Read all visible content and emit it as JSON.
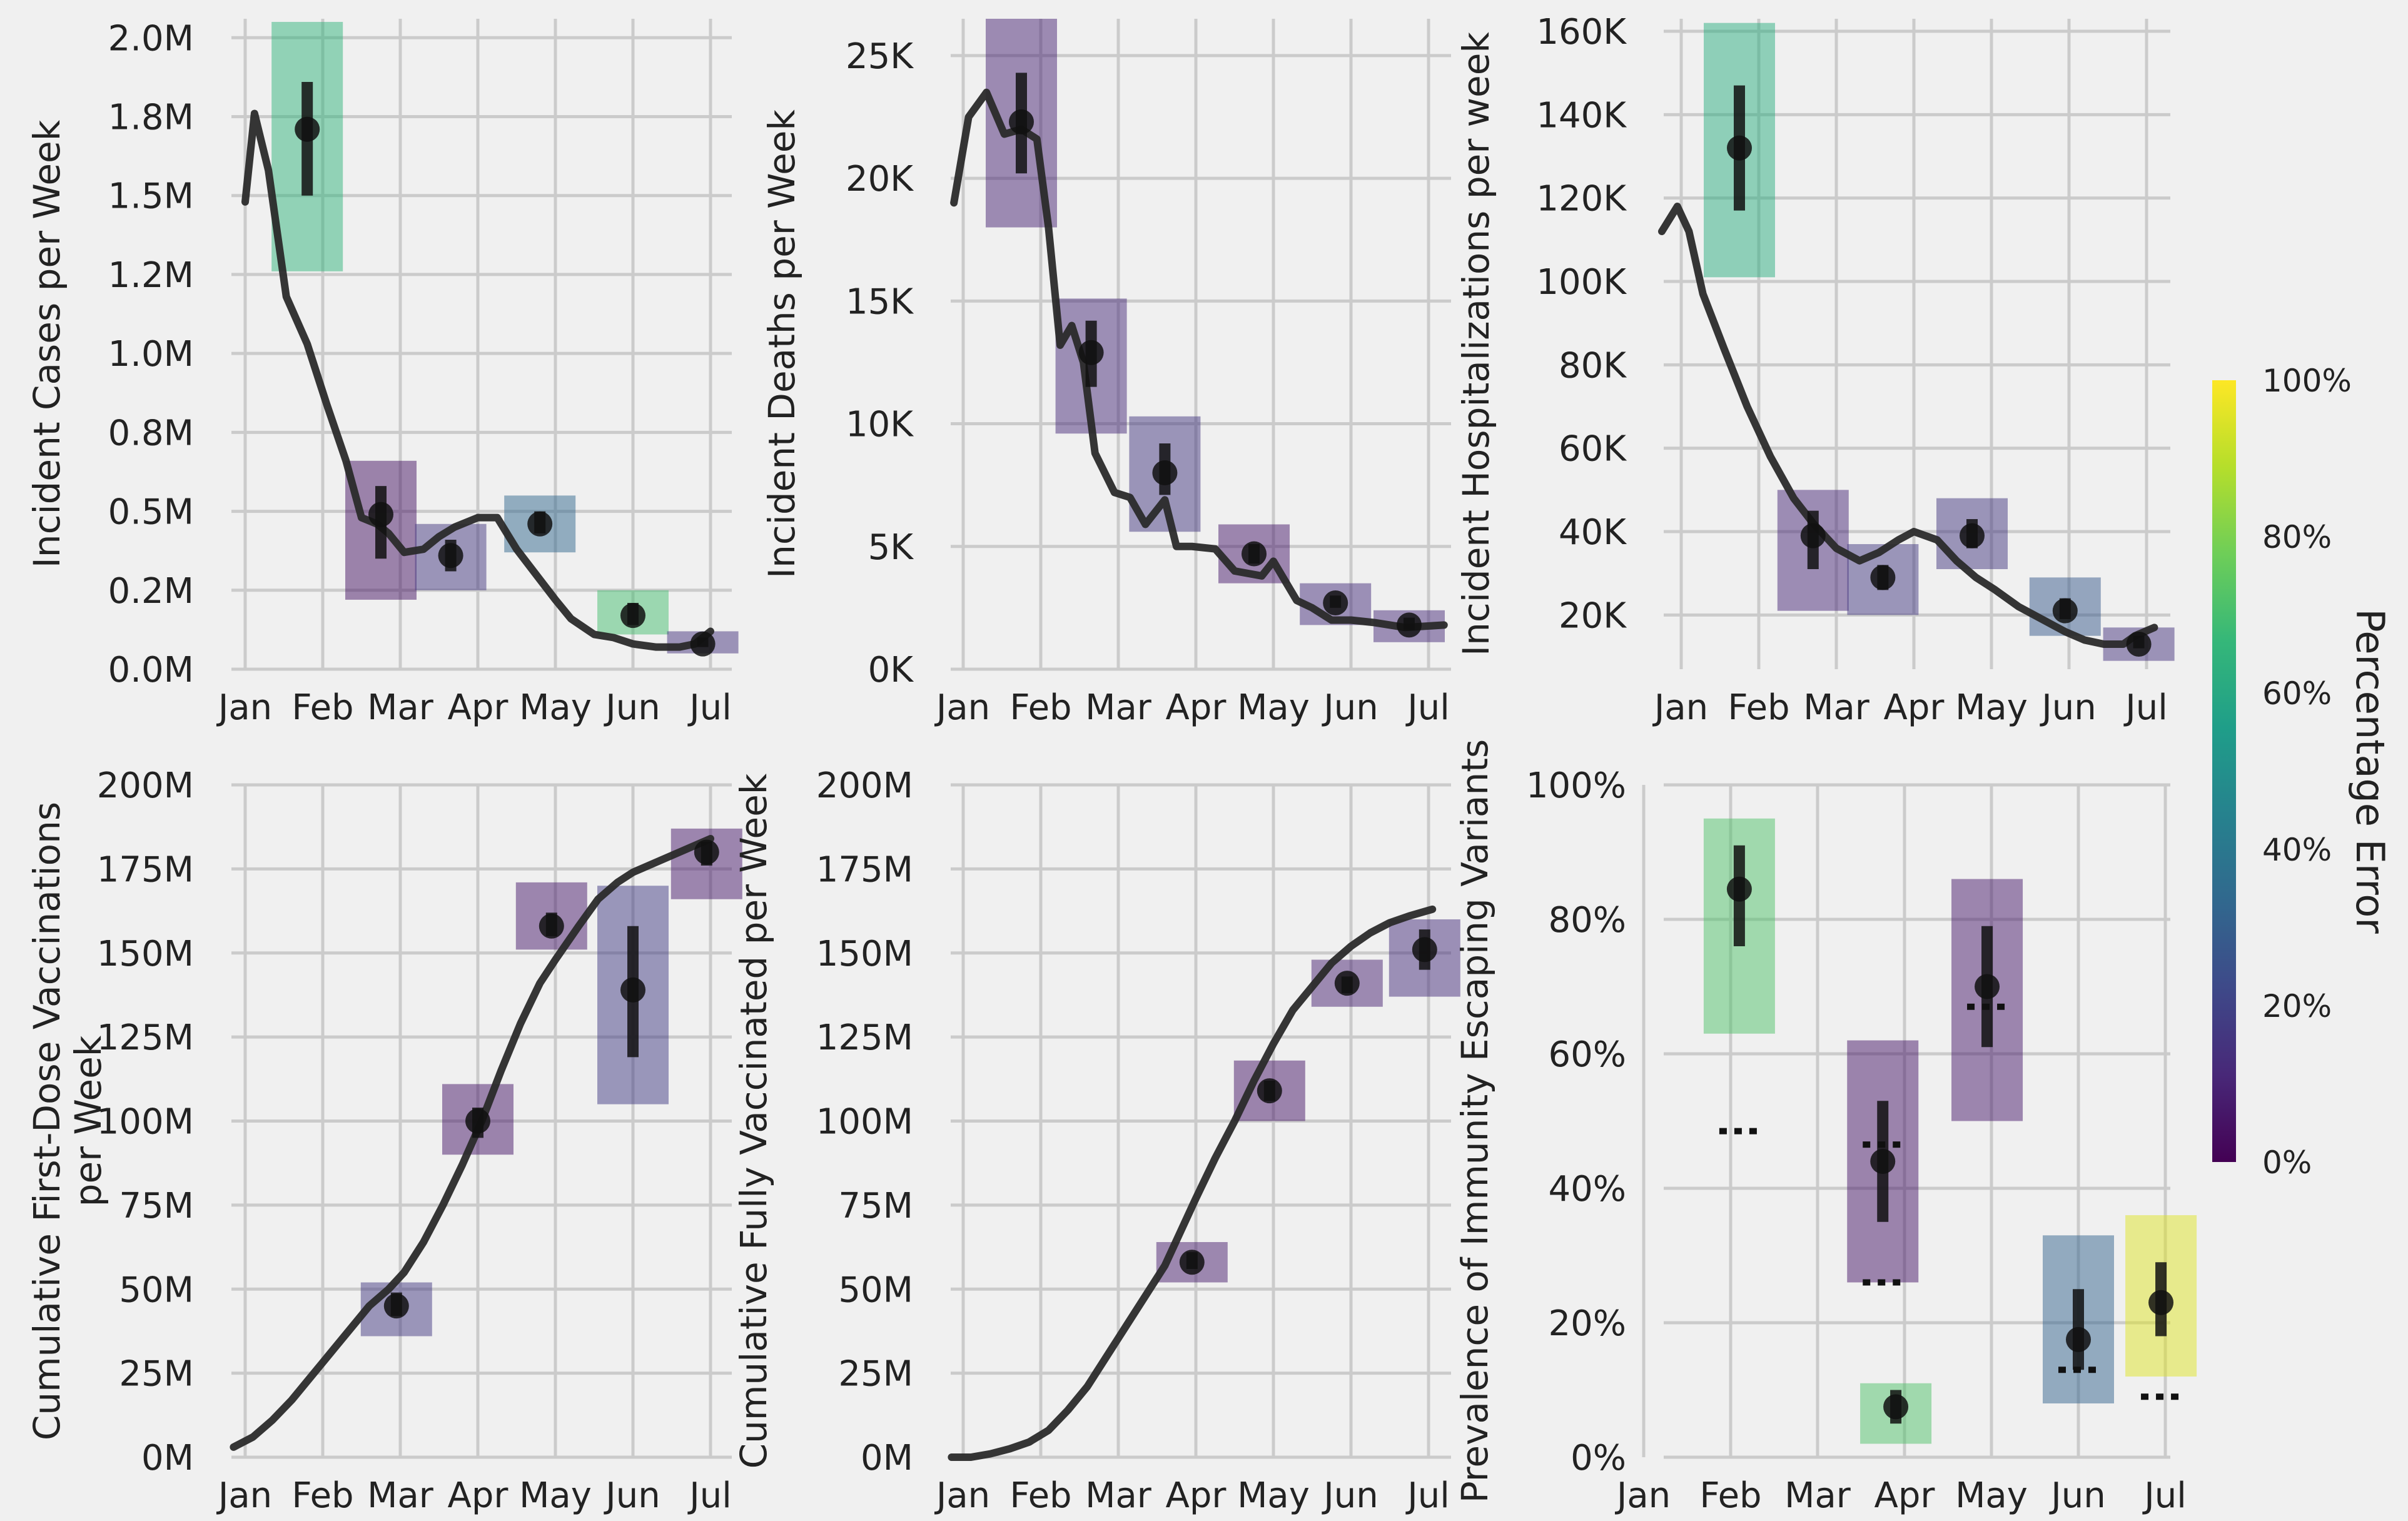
{
  "months": [
    "Jan",
    "Feb",
    "Mar",
    "Apr",
    "May",
    "Jun",
    "Jul"
  ],
  "colorbar": {
    "label": "Percentage Error",
    "ticks": [
      "0%",
      "20%",
      "40%",
      "60%",
      "80%",
      "100%"
    ],
    "colors": [
      "#440154",
      "#482878",
      "#3e4989",
      "#31688e",
      "#26828e",
      "#1f9e89",
      "#35b779",
      "#6ece58",
      "#b5de2b",
      "#fde725"
    ]
  },
  "chart_data": [
    {
      "type": "line",
      "ylabel": "Incident Cases per Week",
      "ylim": [
        0,
        2.06
      ],
      "yticks": [
        0.0,
        0.25,
        0.5,
        0.75,
        1.0,
        1.25,
        1.5,
        1.75,
        2.0
      ],
      "yticklabels": [
        "0.0M",
        "0.2M",
        "0.5M",
        "0.8M",
        "1.0M",
        "1.2M",
        "1.5M",
        "1.8M",
        "2.0M"
      ],
      "unit": "M",
      "line": {
        "x": [
          0.0,
          0.12,
          0.3,
          0.53,
          0.8,
          1.05,
          1.3,
          1.5,
          1.7,
          1.85,
          2.05,
          2.3,
          2.5,
          2.7,
          3.0,
          3.25,
          3.5,
          3.75,
          4.0,
          4.2,
          4.5,
          4.75,
          5.0,
          5.3,
          5.6,
          5.8,
          6.0
        ],
        "y": [
          1.48,
          1.76,
          1.58,
          1.18,
          1.03,
          0.84,
          0.66,
          0.48,
          0.46,
          0.43,
          0.37,
          0.38,
          0.42,
          0.45,
          0.48,
          0.48,
          0.38,
          0.3,
          0.22,
          0.16,
          0.11,
          0.1,
          0.08,
          0.07,
          0.07,
          0.08,
          0.12
        ]
      },
      "predictions": [
        {
          "x": 0.8,
          "y": 1.71,
          "lo": 1.5,
          "hi": 1.86,
          "box_lo": 1.26,
          "box_hi": 2.05,
          "error": 0.65
        },
        {
          "x": 1.75,
          "y": 0.49,
          "lo": 0.35,
          "hi": 0.58,
          "box_lo": 0.22,
          "box_hi": 0.66,
          "error": 0.05
        },
        {
          "x": 2.65,
          "y": 0.36,
          "lo": 0.31,
          "hi": 0.41,
          "box_lo": 0.25,
          "box_hi": 0.46,
          "error": 0.16
        },
        {
          "x": 3.8,
          "y": 0.46,
          "lo": 0.43,
          "hi": 0.5,
          "box_lo": 0.37,
          "box_hi": 0.55,
          "error": 0.33
        },
        {
          "x": 5.0,
          "y": 0.17,
          "lo": 0.14,
          "hi": 0.21,
          "box_lo": 0.11,
          "box_hi": 0.25,
          "error": 0.7
        },
        {
          "x": 5.9,
          "y": 0.08,
          "lo": 0.07,
          "hi": 0.1,
          "box_lo": 0.05,
          "box_hi": 0.12,
          "error": 0.15
        }
      ]
    },
    {
      "type": "line",
      "ylabel": "Incident Deaths  per Week",
      "ylim": [
        0,
        26.5
      ],
      "yticks": [
        0,
        5,
        10,
        15,
        20,
        25
      ],
      "yticklabels": [
        "0K",
        "5K",
        "10K",
        "15K",
        "20K",
        "25K"
      ],
      "unit": "K",
      "line": {
        "x": [
          -0.12,
          0.07,
          0.3,
          0.53,
          0.75,
          0.95,
          1.1,
          1.25,
          1.4,
          1.55,
          1.7,
          1.95,
          2.15,
          2.35,
          2.6,
          2.75,
          2.95,
          3.25,
          3.5,
          3.85,
          4.0,
          4.3,
          4.5,
          4.75,
          5.0,
          5.3,
          5.7,
          6.2
        ],
        "y": [
          19,
          22.5,
          23.5,
          21.8,
          22.0,
          21.6,
          18.0,
          13.2,
          14.0,
          12.5,
          8.8,
          7.2,
          7.0,
          5.9,
          6.9,
          5.0,
          5.0,
          4.9,
          4.0,
          3.8,
          4.4,
          2.8,
          2.5,
          2.0,
          2.0,
          1.9,
          1.7,
          1.8
        ]
      },
      "predictions": [
        {
          "x": 0.75,
          "y": 22.3,
          "lo": 20.2,
          "hi": 24.3,
          "box_lo": 18.0,
          "box_hi": 26.5,
          "error": 0.1
        },
        {
          "x": 1.65,
          "y": 12.9,
          "lo": 11.5,
          "hi": 14.2,
          "box_lo": 9.6,
          "box_hi": 15.1,
          "error": 0.12
        },
        {
          "x": 2.6,
          "y": 8.0,
          "lo": 7.1,
          "hi": 9.2,
          "box_lo": 5.6,
          "box_hi": 10.3,
          "error": 0.16
        },
        {
          "x": 3.75,
          "y": 4.7,
          "lo": 4.3,
          "hi": 5.1,
          "box_lo": 3.5,
          "box_hi": 5.9,
          "error": 0.07
        },
        {
          "x": 4.8,
          "y": 2.7,
          "lo": 2.5,
          "hi": 3.0,
          "box_lo": 1.8,
          "box_hi": 3.5,
          "error": 0.13
        },
        {
          "x": 5.75,
          "y": 1.8,
          "lo": 1.6,
          "hi": 2.1,
          "box_lo": 1.1,
          "box_hi": 2.4,
          "error": 0.12
        }
      ]
    },
    {
      "type": "line",
      "ylabel": "Incident Hospitalizations per week",
      "ylim": [
        7,
        163
      ],
      "yticks": [
        20,
        40,
        60,
        80,
        100,
        120,
        140,
        160
      ],
      "yticklabels": [
        "20K",
        "40K",
        "60K",
        "80K",
        "100K",
        "120K",
        "140K",
        "160K"
      ],
      "unit": "K",
      "line": {
        "x": [
          -0.25,
          -0.05,
          0.1,
          0.28,
          0.55,
          0.85,
          1.15,
          1.45,
          1.7,
          2.0,
          2.3,
          2.55,
          2.8,
          3.0,
          3.3,
          3.55,
          3.8,
          4.05,
          4.35,
          4.65,
          4.95,
          5.2,
          5.45,
          5.7,
          5.85,
          6.1
        ],
        "y": [
          112,
          118,
          112,
          97,
          84,
          70,
          58,
          48,
          42,
          36,
          33,
          35,
          38,
          40,
          38,
          33,
          29,
          26,
          22,
          19,
          16,
          14,
          13,
          13,
          15,
          17
        ]
      },
      "predictions": [
        {
          "x": 0.75,
          "y": 132,
          "lo": 117,
          "hi": 147,
          "box_lo": 101,
          "box_hi": 162,
          "error": 0.62
        },
        {
          "x": 1.7,
          "y": 39,
          "lo": 31,
          "hi": 45,
          "box_lo": 21,
          "box_hi": 50,
          "error": 0.11
        },
        {
          "x": 2.6,
          "y": 29,
          "lo": 26,
          "hi": 32,
          "box_lo": 20,
          "box_hi": 37,
          "error": 0.17
        },
        {
          "x": 3.75,
          "y": 39,
          "lo": 36,
          "hi": 43,
          "box_lo": 31,
          "box_hi": 48,
          "error": 0.16
        },
        {
          "x": 4.95,
          "y": 21,
          "lo": 19,
          "hi": 24,
          "box_lo": 15,
          "box_hi": 29,
          "error": 0.28
        },
        {
          "x": 5.9,
          "y": 13,
          "lo": 12,
          "hi": 15,
          "box_lo": 9,
          "box_hi": 17,
          "error": 0.15
        }
      ]
    },
    {
      "type": "line",
      "ylabel": "Cumulative First-Dose Vaccinations\nper Week",
      "ylim": [
        0,
        200
      ],
      "yticks": [
        0,
        25,
        50,
        75,
        100,
        125,
        150,
        175,
        200
      ],
      "yticklabels": [
        "0M",
        "25M",
        "50M",
        "75M",
        "100M",
        "125M",
        "150M",
        "175M",
        "200M"
      ],
      "unit": "M",
      "line": {
        "x": [
          -0.15,
          0.1,
          0.35,
          0.6,
          0.85,
          1.1,
          1.35,
          1.6,
          1.85,
          2.05,
          2.3,
          2.55,
          2.8,
          3.05,
          3.3,
          3.55,
          3.8,
          4.0,
          4.3,
          4.55,
          4.8,
          5.0,
          5.3,
          5.6,
          6.0
        ],
        "y": [
          3,
          6,
          11,
          17,
          24,
          31,
          38,
          45,
          50,
          55,
          64,
          75,
          87,
          100,
          115,
          129,
          141,
          148,
          158,
          166,
          171,
          174,
          177,
          180,
          184
        ]
      },
      "predictions": [
        {
          "x": 1.95,
          "y": 45,
          "lo": 42,
          "hi": 49,
          "box_lo": 36,
          "box_hi": 52,
          "error": 0.17
        },
        {
          "x": 3.0,
          "y": 100,
          "lo": 95,
          "hi": 104,
          "box_lo": 90,
          "box_hi": 111,
          "error": 0.06
        },
        {
          "x": 3.95,
          "y": 158,
          "lo": 155,
          "hi": 162,
          "box_lo": 151,
          "box_hi": 171,
          "error": 0.07
        },
        {
          "x": 5.0,
          "y": 139,
          "lo": 119,
          "hi": 158,
          "box_lo": 105,
          "box_hi": 170,
          "error": 0.18
        },
        {
          "x": 5.95,
          "y": 180,
          "lo": 176,
          "hi": 183,
          "box_lo": 166,
          "box_hi": 187,
          "error": 0.07
        }
      ]
    },
    {
      "type": "line",
      "ylabel": "Cumulative Fully Vaccinated per Week",
      "ylim": [
        0,
        200
      ],
      "yticks": [
        0,
        25,
        50,
        75,
        100,
        125,
        150,
        175,
        200
      ],
      "yticklabels": [
        "0M",
        "25M",
        "50M",
        "75M",
        "100M",
        "125M",
        "150M",
        "175M",
        "200M"
      ],
      "unit": "M",
      "line": {
        "x": [
          -0.15,
          0.1,
          0.35,
          0.6,
          0.85,
          1.1,
          1.35,
          1.6,
          1.85,
          2.1,
          2.35,
          2.6,
          2.8,
          3.0,
          3.25,
          3.5,
          3.75,
          4.0,
          4.25,
          4.5,
          4.75,
          5.0,
          5.25,
          5.5,
          5.75,
          6.05
        ],
        "y": [
          0,
          0,
          1,
          2.5,
          4.5,
          8,
          14,
          21,
          30,
          39,
          48,
          57,
          67,
          77,
          89,
          100,
          112,
          123,
          133,
          140,
          147,
          152,
          156,
          159,
          161,
          163
        ]
      },
      "predictions": [
        {
          "x": 2.95,
          "y": 58,
          "lo": 56,
          "hi": 61,
          "box_lo": 52,
          "box_hi": 64,
          "error": 0.08
        },
        {
          "x": 3.95,
          "y": 109,
          "lo": 106,
          "hi": 112,
          "box_lo": 100,
          "box_hi": 118,
          "error": 0.06
        },
        {
          "x": 4.95,
          "y": 141,
          "lo": 138,
          "hi": 143,
          "box_lo": 134,
          "box_hi": 148,
          "error": 0.09
        },
        {
          "x": 5.95,
          "y": 151,
          "lo": 145,
          "hi": 157,
          "box_lo": 137,
          "box_hi": 160,
          "error": 0.13
        }
      ]
    },
    {
      "type": "scatter",
      "ylabel": "Prevalence of Immunity Escaping Variants",
      "ylim": [
        0,
        100
      ],
      "yticks": [
        0,
        20,
        40,
        60,
        80,
        100
      ],
      "yticklabels": [
        "0%",
        "20%",
        "40%",
        "60%",
        "80%",
        "100%"
      ],
      "unit": "%",
      "predictions": [
        {
          "x": 1.1,
          "y": 84.5,
          "lo": 76,
          "hi": 91,
          "box_lo": 63,
          "box_hi": 95,
          "error": 0.72,
          "observed": 48.5
        },
        {
          "x": 2.75,
          "y": 44,
          "lo": 35,
          "hi": 53,
          "box_lo": 26,
          "box_hi": 62,
          "error": 0.06,
          "observed": 46.5,
          "observed2": 26
        },
        {
          "x": 2.9,
          "y": 7.5,
          "lo": 5,
          "hi": 10,
          "box_lo": 2,
          "box_hi": 11,
          "error": 0.72
        },
        {
          "x": 3.95,
          "y": 70,
          "lo": 61,
          "hi": 79,
          "box_lo": 50,
          "box_hi": 86,
          "error": 0.07,
          "observed": 67
        },
        {
          "x": 5.0,
          "y": 17.5,
          "lo": 13,
          "hi": 25,
          "box_lo": 8,
          "box_hi": 33,
          "error": 0.32,
          "observed": 13
        },
        {
          "x": 5.95,
          "y": 23,
          "lo": 18,
          "hi": 29,
          "box_lo": 12,
          "box_hi": 36,
          "error": 0.95,
          "observed": 9
        }
      ]
    }
  ]
}
